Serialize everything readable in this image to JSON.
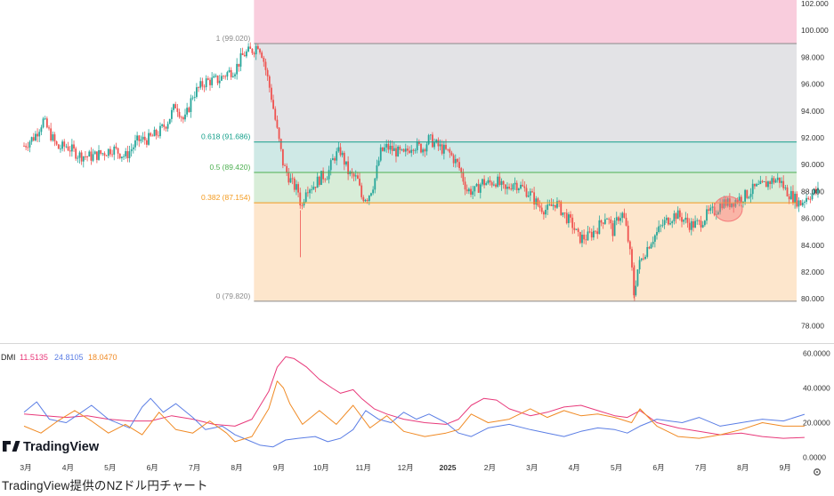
{
  "caption": "TradingView提供のNZドル円チャート",
  "brand": "TradingView",
  "colors": {
    "up": "#26a69a",
    "down": "#ef5350",
    "plus_di": "#5b7ee5",
    "minus_di": "#e8397a",
    "adx": "#f08a24",
    "fib_top_band": "#f9cddd",
    "fib_100_618": "#e3e3e6",
    "fib_618_5": "#cfe9e6",
    "fib_5_382": "#d8edd8",
    "fib_382_0": "#fde6cc",
    "highlight": "#f47a7a"
  },
  "chart_data": [
    {
      "type": "candlestick",
      "instrument": "NZD/JPY",
      "x_ticks": [
        "3月",
        "4月",
        "5月",
        "6月",
        "7月",
        "8月",
        "9月",
        "10月",
        "11月",
        "12月",
        "2025",
        "2月",
        "3月",
        "4月",
        "5月",
        "6月",
        "7月",
        "8月",
        "9月"
      ],
      "y_ticks": [
        "78.000",
        "80.000",
        "82.000",
        "84.000",
        "86.000",
        "88.000",
        "90.000",
        "92.000",
        "94.000",
        "96.000",
        "98.000",
        "100.000",
        "102.000"
      ],
      "ylim": [
        76.6,
        102.4
      ],
      "price_path": [
        [
          0,
          91.4
        ],
        [
          0.25,
          92.1
        ],
        [
          0.45,
          93.3
        ],
        [
          0.6,
          92.4
        ],
        [
          0.8,
          91.2
        ],
        [
          1.0,
          91.4
        ],
        [
          1.3,
          90.7
        ],
        [
          1.6,
          90.6
        ],
        [
          1.9,
          90.9
        ],
        [
          2.1,
          91.2
        ],
        [
          2.4,
          90.6
        ],
        [
          2.7,
          91.8
        ],
        [
          2.95,
          91.9
        ],
        [
          3.2,
          92.4
        ],
        [
          3.4,
          93.2
        ],
        [
          3.6,
          94.5
        ],
        [
          3.8,
          93.2
        ],
        [
          4.0,
          95.2
        ],
        [
          4.3,
          96.2
        ],
        [
          4.6,
          96.3
        ],
        [
          4.8,
          96.8
        ],
        [
          5.0,
          97.1
        ],
        [
          5.2,
          98.2
        ],
        [
          5.45,
          98.6
        ],
        [
          5.55,
          99.0
        ],
        [
          5.65,
          98.2
        ],
        [
          5.85,
          95.3
        ],
        [
          6.0,
          92.5
        ],
        [
          6.15,
          89.9
        ],
        [
          6.35,
          88.6
        ],
        [
          6.5,
          88.0
        ],
        [
          6.58,
          86.7
        ],
        [
          6.68,
          88.3
        ],
        [
          6.85,
          88.4
        ],
        [
          7.05,
          89.1
        ],
        [
          7.2,
          89.3
        ],
        [
          7.35,
          90.6
        ],
        [
          7.5,
          91.0
        ],
        [
          7.7,
          89.3
        ],
        [
          7.9,
          88.9
        ],
        [
          8.0,
          87.6
        ],
        [
          8.15,
          87.6
        ],
        [
          8.3,
          88.7
        ],
        [
          8.45,
          90.9
        ],
        [
          8.6,
          91.3
        ],
        [
          8.8,
          91.0
        ],
        [
          9.0,
          90.7
        ],
        [
          9.2,
          91.5
        ],
        [
          9.45,
          91.2
        ],
        [
          9.6,
          91.9
        ],
        [
          9.8,
          91.4
        ],
        [
          9.95,
          91.1
        ],
        [
          10.1,
          90.8
        ],
        [
          10.3,
          89.9
        ],
        [
          10.5,
          88.1
        ],
        [
          10.7,
          88.0
        ],
        [
          10.85,
          88.7
        ],
        [
          11.0,
          88.6
        ],
        [
          11.2,
          88.8
        ],
        [
          11.4,
          88.0
        ],
        [
          11.6,
          88.7
        ],
        [
          11.8,
          88.3
        ],
        [
          12.0,
          87.8
        ],
        [
          12.2,
          86.9
        ],
        [
          12.4,
          86.6
        ],
        [
          12.6,
          87.2
        ],
        [
          12.8,
          86.3
        ],
        [
          13.0,
          85.5
        ],
        [
          13.15,
          84.5
        ],
        [
          13.35,
          84.6
        ],
        [
          13.6,
          85.3
        ],
        [
          13.8,
          86.3
        ],
        [
          13.95,
          85.0
        ],
        [
          14.1,
          86.2
        ],
        [
          14.2,
          86.3
        ],
        [
          14.3,
          84.8
        ],
        [
          14.4,
          82.5
        ],
        [
          14.45,
          80.3
        ],
        [
          14.55,
          82.3
        ],
        [
          14.7,
          83.4
        ],
        [
          14.85,
          84.3
        ],
        [
          15.0,
          84.9
        ],
        [
          15.15,
          85.6
        ],
        [
          15.3,
          86.0
        ],
        [
          15.45,
          86.3
        ],
        [
          15.6,
          86.0
        ],
        [
          15.8,
          85.5
        ],
        [
          16.0,
          85.6
        ],
        [
          16.2,
          86.3
        ],
        [
          16.4,
          86.6
        ],
        [
          16.55,
          87.2
        ],
        [
          16.7,
          87.1
        ],
        [
          16.9,
          87.4
        ],
        [
          17.1,
          87.7
        ],
        [
          17.3,
          88.2
        ],
        [
          17.5,
          88.4
        ],
        [
          17.7,
          88.8
        ],
        [
          17.9,
          88.9
        ],
        [
          18.05,
          88.1
        ],
        [
          18.25,
          87.5
        ],
        [
          18.4,
          87.1
        ],
        [
          18.55,
          87.6
        ],
        [
          18.7,
          87.9
        ],
        [
          18.85,
          88.0
        ]
      ],
      "fibonacci": [
        {
          "level": "1",
          "value": 99.02,
          "label": "1 (99.020)",
          "color": "#8a8a8a"
        },
        {
          "level": "0.618",
          "value": 91.686,
          "label": "0.618 (91.686)",
          "color": "#139f8a"
        },
        {
          "level": "0.5",
          "value": 89.42,
          "label": "0.5 (89.420)",
          "color": "#4caf50"
        },
        {
          "level": "0.382",
          "value": 87.154,
          "label": "0.382 (87.154)",
          "color": "#f39a1e"
        },
        {
          "level": "0",
          "value": 79.82,
          "label": "0 (79.820)",
          "color": "#8a8a8a"
        }
      ],
      "fib_start_month": 5.45
    },
    {
      "type": "line",
      "indicator": "DMI",
      "label": "DMI",
      "values": {
        "minus_di": "11.5135",
        "plus_di": "24.8105",
        "adx": "18.0470"
      },
      "y_ticks": [
        "0.0000",
        "20.0000",
        "40.0000",
        "60.0000"
      ],
      "ylim": [
        -1,
        62
      ],
      "series": [
        {
          "key": "minus_di",
          "color": "#e8397a",
          "points": [
            [
              0,
              25
            ],
            [
              0.5,
              24
            ],
            [
              1.0,
              23
            ],
            [
              1.5,
              24
            ],
            [
              2.0,
              22
            ],
            [
              2.5,
              21
            ],
            [
              3.0,
              21
            ],
            [
              3.5,
              24
            ],
            [
              4.0,
              22
            ],
            [
              4.5,
              19
            ],
            [
              5.0,
              18
            ],
            [
              5.4,
              22
            ],
            [
              5.8,
              38
            ],
            [
              6.0,
              52
            ],
            [
              6.2,
              58
            ],
            [
              6.4,
              57
            ],
            [
              6.7,
              52
            ],
            [
              7.0,
              45
            ],
            [
              7.3,
              40
            ],
            [
              7.5,
              37
            ],
            [
              7.8,
              39
            ],
            [
              8.0,
              34
            ],
            [
              8.3,
              28
            ],
            [
              8.6,
              25
            ],
            [
              9.0,
              22
            ],
            [
              9.5,
              20
            ],
            [
              10.0,
              19
            ],
            [
              10.3,
              22
            ],
            [
              10.6,
              30
            ],
            [
              10.9,
              34
            ],
            [
              11.2,
              33
            ],
            [
              11.5,
              28
            ],
            [
              12.0,
              24
            ],
            [
              12.4,
              26
            ],
            [
              12.8,
              29
            ],
            [
              13.2,
              30
            ],
            [
              13.6,
              27
            ],
            [
              14.0,
              24
            ],
            [
              14.3,
              23
            ],
            [
              14.6,
              27
            ],
            [
              15.0,
              20
            ],
            [
              15.5,
              17
            ],
            [
              16.0,
              15
            ],
            [
              16.5,
              13
            ],
            [
              17.0,
              14
            ],
            [
              17.5,
              12
            ],
            [
              18.0,
              11
            ],
            [
              18.5,
              11.5
            ]
          ]
        },
        {
          "key": "plus_di",
          "color": "#5b7ee5",
          "points": [
            [
              0,
              26
            ],
            [
              0.3,
              32
            ],
            [
              0.6,
              22
            ],
            [
              1.0,
              20
            ],
            [
              1.3,
              25
            ],
            [
              1.6,
              30
            ],
            [
              2.0,
              22
            ],
            [
              2.5,
              17
            ],
            [
              2.8,
              29
            ],
            [
              3.0,
              34
            ],
            [
              3.3,
              26
            ],
            [
              3.6,
              31
            ],
            [
              4.0,
              23
            ],
            [
              4.3,
              16
            ],
            [
              4.7,
              18
            ],
            [
              5.0,
              13
            ],
            [
              5.3,
              10
            ],
            [
              5.6,
              7
            ],
            [
              5.9,
              6
            ],
            [
              6.2,
              10
            ],
            [
              6.5,
              11
            ],
            [
              6.9,
              12
            ],
            [
              7.2,
              9
            ],
            [
              7.5,
              11
            ],
            [
              7.8,
              16
            ],
            [
              8.1,
              27
            ],
            [
              8.4,
              22
            ],
            [
              8.7,
              20
            ],
            [
              9.0,
              26
            ],
            [
              9.3,
              22
            ],
            [
              9.6,
              25
            ],
            [
              10.0,
              20
            ],
            [
              10.3,
              14
            ],
            [
              10.6,
              12
            ],
            [
              11.0,
              17
            ],
            [
              11.5,
              19
            ],
            [
              12.0,
              16
            ],
            [
              12.4,
              14
            ],
            [
              12.8,
              12
            ],
            [
              13.2,
              15
            ],
            [
              13.6,
              17
            ],
            [
              14.0,
              16
            ],
            [
              14.3,
              14
            ],
            [
              14.6,
              18
            ],
            [
              15.0,
              22
            ],
            [
              15.3,
              21
            ],
            [
              15.6,
              20
            ],
            [
              16.0,
              23
            ],
            [
              16.5,
              18
            ],
            [
              17.0,
              20
            ],
            [
              17.5,
              22
            ],
            [
              18.0,
              21
            ],
            [
              18.5,
              24.8
            ]
          ]
        },
        {
          "key": "adx",
          "color": "#f08a24",
          "points": [
            [
              0,
              18
            ],
            [
              0.4,
              14
            ],
            [
              0.8,
              21
            ],
            [
              1.2,
              27
            ],
            [
              1.6,
              21
            ],
            [
              2.0,
              14
            ],
            [
              2.4,
              19
            ],
            [
              2.8,
              13
            ],
            [
              3.2,
              26
            ],
            [
              3.6,
              16
            ],
            [
              4.0,
              14
            ],
            [
              4.4,
              21
            ],
            [
              4.8,
              14
            ],
            [
              5.0,
              9
            ],
            [
              5.4,
              12
            ],
            [
              5.8,
              28
            ],
            [
              6.0,
              44
            ],
            [
              6.15,
              40
            ],
            [
              6.3,
              31
            ],
            [
              6.6,
              19
            ],
            [
              7.0,
              27
            ],
            [
              7.4,
              19
            ],
            [
              7.8,
              30
            ],
            [
              8.2,
              17
            ],
            [
              8.6,
              24
            ],
            [
              9.0,
              15
            ],
            [
              9.5,
              12
            ],
            [
              10.0,
              14
            ],
            [
              10.3,
              16
            ],
            [
              10.6,
              25
            ],
            [
              11.0,
              20
            ],
            [
              11.5,
              22
            ],
            [
              12.0,
              28
            ],
            [
              12.4,
              23
            ],
            [
              12.8,
              27
            ],
            [
              13.2,
              24
            ],
            [
              13.6,
              25
            ],
            [
              14.0,
              23
            ],
            [
              14.4,
              20
            ],
            [
              14.6,
              28
            ],
            [
              15.0,
              18
            ],
            [
              15.5,
              12
            ],
            [
              16.0,
              11
            ],
            [
              16.5,
              13
            ],
            [
              17.0,
              16
            ],
            [
              17.5,
              20
            ],
            [
              18.0,
              18
            ],
            [
              18.5,
              18
            ]
          ]
        }
      ]
    }
  ]
}
